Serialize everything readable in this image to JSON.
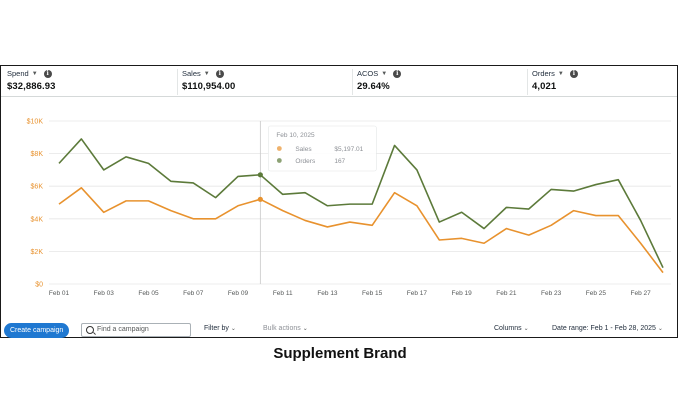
{
  "metrics": [
    {
      "label": "Spend",
      "value": "$32,886.93"
    },
    {
      "label": "Sales",
      "value": "$110,954.00"
    },
    {
      "label": "ACOS",
      "value": "29.64%"
    },
    {
      "label": "Orders",
      "value": "4,021"
    }
  ],
  "toolbar": {
    "create_label": "Create campaign",
    "search_placeholder": "Find a campaign",
    "filter_label": "Filter by",
    "bulk_label": "Bulk actions",
    "columns_label": "Columns",
    "date_range_label": "Date range: Feb 1 - Feb 28, 2025"
  },
  "tooltip": {
    "date": "Feb 10, 2025",
    "rows": [
      {
        "label": "Sales",
        "value": "$5,197.01"
      },
      {
        "label": "Orders",
        "value": "167"
      }
    ]
  },
  "caption": "Supplement Brand",
  "colors": {
    "sales": "#e8922e",
    "orders": "#5c7a3a",
    "grid": "#e6e6e6",
    "axis_text": "#e8922e",
    "accent": "#1f78d1"
  },
  "chart_data": {
    "type": "line",
    "x": [
      "Feb 01",
      "Feb 02",
      "Feb 03",
      "Feb 04",
      "Feb 05",
      "Feb 06",
      "Feb 07",
      "Feb 08",
      "Feb 09",
      "Feb 10",
      "Feb 11",
      "Feb 12",
      "Feb 13",
      "Feb 14",
      "Feb 15",
      "Feb 16",
      "Feb 17",
      "Feb 18",
      "Feb 19",
      "Feb 20",
      "Feb 21",
      "Feb 22",
      "Feb 23",
      "Feb 24",
      "Feb 25",
      "Feb 26",
      "Feb 27",
      "Feb 28"
    ],
    "x_ticks": [
      "Feb 01",
      "Feb 03",
      "Feb 05",
      "Feb 07",
      "Feb 09",
      "Feb 11",
      "Feb 13",
      "Feb 15",
      "Feb 17",
      "Feb 19",
      "Feb 21",
      "Feb 23",
      "Feb 25",
      "Feb 27"
    ],
    "y_ticks": [
      "$0",
      "$2K",
      "$4K",
      "$6K",
      "$8K",
      "$10K"
    ],
    "ylim": [
      0,
      10000
    ],
    "grid": true,
    "series": [
      {
        "name": "Sales",
        "color": "#e8922e",
        "values": [
          4900,
          5900,
          4400,
          5100,
          5100,
          4500,
          4000,
          4000,
          4800,
          5197,
          4500,
          3900,
          3500,
          3800,
          3600,
          5600,
          4800,
          2700,
          2800,
          2500,
          3400,
          3000,
          3600,
          4500,
          4200,
          4200,
          2500,
          700
        ]
      },
      {
        "name": "Orders",
        "color": "#5c7a3a",
        "values": [
          7400,
          8900,
          7000,
          7800,
          7400,
          6300,
          6200,
          5300,
          6600,
          6700,
          5500,
          5600,
          4800,
          4900,
          4900,
          8500,
          7000,
          3800,
          4400,
          3400,
          4700,
          4600,
          5800,
          5700,
          6100,
          6400,
          3900,
          1000
        ]
      }
    ],
    "highlight_x": "Feb 10"
  }
}
